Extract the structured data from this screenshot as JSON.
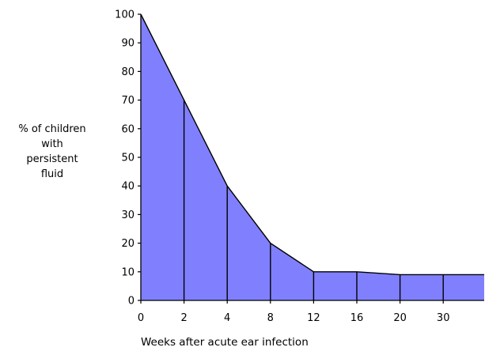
{
  "chart_data": {
    "type": "area",
    "x_labels": [
      "0",
      "2",
      "4",
      "8",
      "12",
      "16",
      "20",
      "30"
    ],
    "values": [
      100,
      70,
      40,
      20,
      10,
      10,
      9,
      9
    ],
    "y_ticks": [
      0,
      10,
      20,
      30,
      40,
      50,
      60,
      70,
      80,
      90,
      100
    ],
    "ylim": [
      0,
      100
    ],
    "ylabel_lines": [
      "% of children",
      "with",
      "persistent",
      "fluid"
    ],
    "xlabel": "Weeks after acute ear infection",
    "fill_color": "#8080ff",
    "line_color": "#000000",
    "grid": false
  }
}
